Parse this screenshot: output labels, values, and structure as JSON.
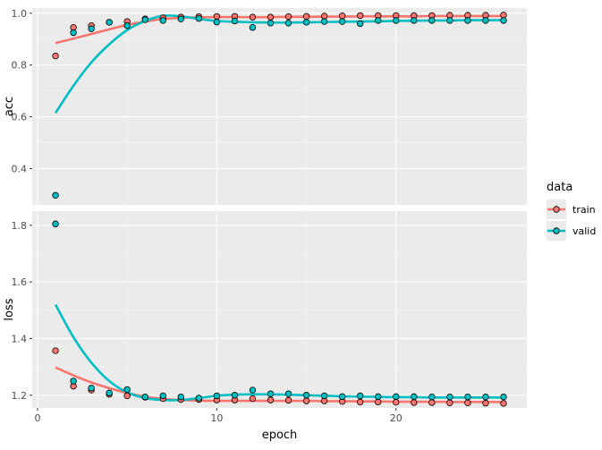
{
  "chart_data": {
    "type": "scatter",
    "x_label": "epoch",
    "x_ticks": [
      0,
      10,
      20
    ],
    "xlim": [
      -0.3,
      27.3
    ],
    "grid": true,
    "smoothing": true,
    "colors": {
      "train": "#f8766d",
      "valid": "#00bfc4"
    },
    "legend": {
      "title": "data",
      "position": "right",
      "items": [
        {
          "key": "train",
          "label": "train"
        },
        {
          "key": "valid",
          "label": "valid"
        }
      ]
    },
    "panels": [
      {
        "name": "acc",
        "ylabel": "acc",
        "ylim": [
          0.26,
          1.02
        ],
        "yticks": [
          0.4,
          0.6,
          0.8,
          1.0
        ],
        "ytick_labels": [
          "0.4",
          "0.6",
          "0.8",
          "1.0"
        ],
        "series": [
          {
            "name": "train",
            "x": [
              1,
              2,
              3,
              4,
              5,
              6,
              7,
              8,
              9,
              10,
              11,
              12,
              13,
              14,
              15,
              16,
              17,
              18,
              19,
              20,
              21,
              22,
              23,
              24,
              25,
              26
            ],
            "y": [
              0.835,
              0.945,
              0.952,
              0.965,
              0.968,
              0.978,
              0.982,
              0.985,
              0.987,
              0.988,
              0.988,
              0.985,
              0.985,
              0.987,
              0.988,
              0.989,
              0.99,
              0.991,
              0.991,
              0.991,
              0.991,
              0.991,
              0.992,
              0.992,
              0.992,
              0.993
            ]
          },
          {
            "name": "valid",
            "x": [
              1,
              2,
              3,
              4,
              5,
              6,
              7,
              8,
              9,
              10,
              11,
              12,
              13,
              14,
              15,
              16,
              17,
              18,
              19,
              20,
              21,
              22,
              23,
              24,
              25,
              26
            ],
            "y": [
              0.297,
              0.925,
              0.94,
              0.965,
              0.952,
              0.975,
              0.972,
              0.978,
              0.98,
              0.966,
              0.97,
              0.945,
              0.962,
              0.962,
              0.965,
              0.968,
              0.968,
              0.96,
              0.972,
              0.972,
              0.972,
              0.972,
              0.972,
              0.972,
              0.972,
              0.972
            ]
          }
        ],
        "smooth": [
          {
            "name": "train",
            "x": [
              1,
              2,
              3,
              4,
              5,
              6,
              7,
              8,
              9,
              10,
              11,
              12,
              13,
              14,
              15,
              16,
              17,
              18,
              19,
              20,
              21,
              22,
              23,
              24,
              25,
              26
            ],
            "y": [
              0.885,
              0.902,
              0.92,
              0.938,
              0.955,
              0.968,
              0.978,
              0.982,
              0.984,
              0.985,
              0.985,
              0.985,
              0.985,
              0.986,
              0.986,
              0.987,
              0.987,
              0.988,
              0.988,
              0.988,
              0.988,
              0.989,
              0.989,
              0.989,
              0.989,
              0.989
            ]
          },
          {
            "name": "valid",
            "x": [
              1,
              2,
              3,
              4,
              5,
              6,
              7,
              8,
              9,
              10,
              11,
              12,
              13,
              14,
              15,
              16,
              17,
              18,
              19,
              20,
              21,
              22,
              23,
              24,
              25,
              26
            ],
            "y": [
              0.615,
              0.72,
              0.81,
              0.88,
              0.935,
              0.97,
              0.99,
              0.988,
              0.978,
              0.97,
              0.967,
              0.965,
              0.964,
              0.964,
              0.965,
              0.966,
              0.967,
              0.968,
              0.969,
              0.97,
              0.971,
              0.972,
              0.972,
              0.973,
              0.973,
              0.973
            ]
          }
        ]
      },
      {
        "name": "loss",
        "ylabel": "loss",
        "ylim": [
          1.155,
          1.85
        ],
        "yticks": [
          1.2,
          1.4,
          1.6,
          1.8
        ],
        "ytick_labels": [
          "1.2",
          "1.4",
          "1.6",
          "1.8"
        ],
        "series": [
          {
            "name": "train",
            "x": [
              1,
              2,
              3,
              4,
              5,
              6,
              7,
              8,
              9,
              10,
              11,
              12,
              13,
              14,
              15,
              16,
              17,
              18,
              19,
              20,
              21,
              22,
              23,
              24,
              25,
              26
            ],
            "y": [
              1.357,
              1.232,
              1.218,
              1.203,
              1.198,
              1.193,
              1.188,
              1.185,
              1.185,
              1.183,
              1.183,
              1.188,
              1.183,
              1.182,
              1.18,
              1.18,
              1.178,
              1.176,
              1.176,
              1.175,
              1.174,
              1.174,
              1.173,
              1.173,
              1.172,
              1.171
            ]
          },
          {
            "name": "valid",
            "x": [
              1,
              2,
              3,
              4,
              5,
              6,
              7,
              8,
              9,
              10,
              11,
              12,
              13,
              14,
              15,
              16,
              17,
              18,
              19,
              20,
              21,
              22,
              23,
              24,
              25,
              26
            ],
            "y": [
              1.805,
              1.25,
              1.225,
              1.208,
              1.22,
              1.194,
              1.198,
              1.194,
              1.19,
              1.198,
              1.2,
              1.218,
              1.205,
              1.205,
              1.2,
              1.198,
              1.195,
              1.198,
              1.195,
              1.195,
              1.195,
              1.194,
              1.194,
              1.194,
              1.194,
              1.194
            ]
          }
        ],
        "smooth": [
          {
            "name": "train",
            "x": [
              1,
              2,
              3,
              4,
              5,
              6,
              7,
              8,
              9,
              10,
              11,
              12,
              13,
              14,
              15,
              16,
              17,
              18,
              19,
              20,
              21,
              22,
              23,
              24,
              25,
              26
            ],
            "y": [
              1.298,
              1.27,
              1.245,
              1.225,
              1.208,
              1.195,
              1.187,
              1.183,
              1.181,
              1.18,
              1.18,
              1.18,
              1.18,
              1.18,
              1.18,
              1.179,
              1.179,
              1.178,
              1.178,
              1.177,
              1.177,
              1.177,
              1.176,
              1.176,
              1.176,
              1.176
            ]
          },
          {
            "name": "valid",
            "x": [
              1,
              2,
              3,
              4,
              5,
              6,
              7,
              8,
              9,
              10,
              11,
              12,
              13,
              14,
              15,
              16,
              17,
              18,
              19,
              20,
              21,
              22,
              23,
              24,
              25,
              26
            ],
            "y": [
              1.52,
              1.405,
              1.315,
              1.25,
              1.21,
              1.19,
              1.183,
              1.183,
              1.19,
              1.198,
              1.202,
              1.203,
              1.203,
              1.202,
              1.2,
              1.198,
              1.196,
              1.195,
              1.194,
              1.193,
              1.193,
              1.192,
              1.192,
              1.192,
              1.192,
              1.192
            ]
          }
        ]
      }
    ]
  }
}
